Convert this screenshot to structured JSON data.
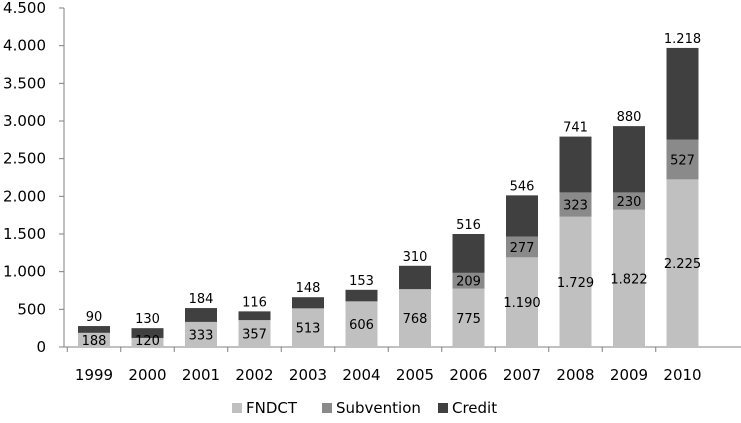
{
  "chart_data": {
    "type": "bar",
    "stacked": true,
    "categories": [
      "1999",
      "2000",
      "2001",
      "2002",
      "2003",
      "2004",
      "2005",
      "2006",
      "2007",
      "2008",
      "2009",
      "2010"
    ],
    "series": [
      {
        "name": "FNDCT",
        "color": "#c0c0c0",
        "values": [
          188,
          120,
          333,
          357,
          513,
          606,
          768,
          775,
          1190,
          1729,
          1822,
          2225
        ],
        "labels": [
          "188",
          "120",
          "333",
          "357",
          "513",
          "606",
          "768",
          "775",
          "1.190",
          "1.729",
          "1.822",
          "2.225"
        ]
      },
      {
        "name": "Subvention",
        "color": "#8a8a8a",
        "values": [
          0,
          0,
          0,
          0,
          0,
          0,
          0,
          209,
          277,
          323,
          230,
          527
        ],
        "labels": [
          "",
          "",
          "",
          "",
          "",
          "",
          "",
          "209",
          "277",
          "323",
          "230",
          "527"
        ]
      },
      {
        "name": "Credit",
        "color": "#404040",
        "values": [
          90,
          130,
          184,
          116,
          148,
          153,
          310,
          516,
          546,
          741,
          880,
          1218
        ],
        "labels": [
          "90",
          "130",
          "184",
          "116",
          "148",
          "153",
          "310",
          "516",
          "546",
          "741",
          "880",
          "1.218"
        ]
      }
    ],
    "yticks": [
      0,
      500,
      1000,
      1500,
      2000,
      2500,
      3000,
      3500,
      4000,
      4500
    ],
    "ytick_labels": [
      "0",
      "500",
      "1.000",
      "1.500",
      "2.000",
      "2.500",
      "3.000",
      "3.500",
      "4.000",
      "4.500"
    ],
    "ylim": [
      0,
      4500
    ],
    "grid": false,
    "legend_position": "bottom"
  }
}
